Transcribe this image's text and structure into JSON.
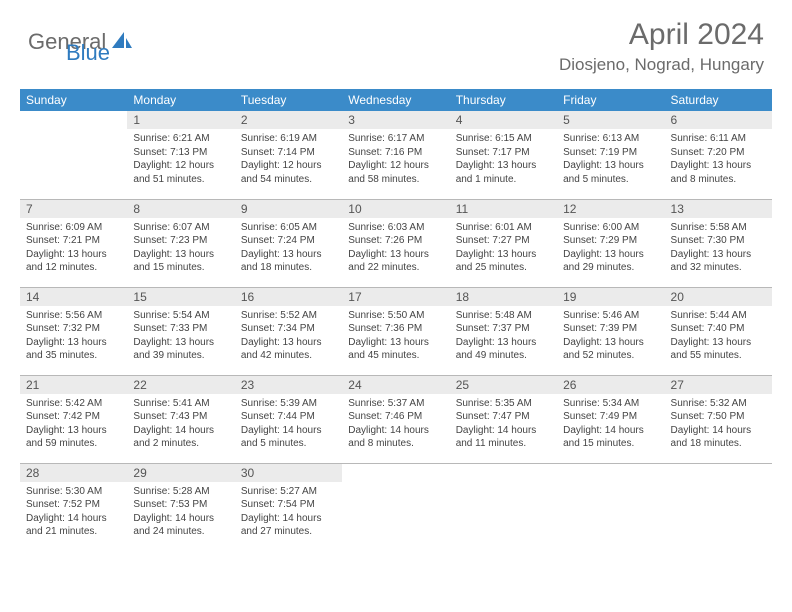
{
  "brand": {
    "part1": "General",
    "part2": "Blue"
  },
  "title": "April 2024",
  "location": "Diosjeno, Nograd, Hungary",
  "theme": {
    "header_bg": "#3b8bc9",
    "header_text": "#ffffff",
    "daynum_bg": "#ebebeb",
    "border": "#b8b8b8",
    "logo_gray": "#6b6b6b",
    "logo_blue": "#2f7bbf"
  },
  "weekdays": [
    "Sunday",
    "Monday",
    "Tuesday",
    "Wednesday",
    "Thursday",
    "Friday",
    "Saturday"
  ],
  "grid": [
    [
      null,
      {
        "n": "1",
        "sr": "Sunrise: 6:21 AM",
        "ss": "Sunset: 7:13 PM",
        "dl1": "Daylight: 12 hours",
        "dl2": "and 51 minutes."
      },
      {
        "n": "2",
        "sr": "Sunrise: 6:19 AM",
        "ss": "Sunset: 7:14 PM",
        "dl1": "Daylight: 12 hours",
        "dl2": "and 54 minutes."
      },
      {
        "n": "3",
        "sr": "Sunrise: 6:17 AM",
        "ss": "Sunset: 7:16 PM",
        "dl1": "Daylight: 12 hours",
        "dl2": "and 58 minutes."
      },
      {
        "n": "4",
        "sr": "Sunrise: 6:15 AM",
        "ss": "Sunset: 7:17 PM",
        "dl1": "Daylight: 13 hours",
        "dl2": "and 1 minute."
      },
      {
        "n": "5",
        "sr": "Sunrise: 6:13 AM",
        "ss": "Sunset: 7:19 PM",
        "dl1": "Daylight: 13 hours",
        "dl2": "and 5 minutes."
      },
      {
        "n": "6",
        "sr": "Sunrise: 6:11 AM",
        "ss": "Sunset: 7:20 PM",
        "dl1": "Daylight: 13 hours",
        "dl2": "and 8 minutes."
      }
    ],
    [
      {
        "n": "7",
        "sr": "Sunrise: 6:09 AM",
        "ss": "Sunset: 7:21 PM",
        "dl1": "Daylight: 13 hours",
        "dl2": "and 12 minutes."
      },
      {
        "n": "8",
        "sr": "Sunrise: 6:07 AM",
        "ss": "Sunset: 7:23 PM",
        "dl1": "Daylight: 13 hours",
        "dl2": "and 15 minutes."
      },
      {
        "n": "9",
        "sr": "Sunrise: 6:05 AM",
        "ss": "Sunset: 7:24 PM",
        "dl1": "Daylight: 13 hours",
        "dl2": "and 18 minutes."
      },
      {
        "n": "10",
        "sr": "Sunrise: 6:03 AM",
        "ss": "Sunset: 7:26 PM",
        "dl1": "Daylight: 13 hours",
        "dl2": "and 22 minutes."
      },
      {
        "n": "11",
        "sr": "Sunrise: 6:01 AM",
        "ss": "Sunset: 7:27 PM",
        "dl1": "Daylight: 13 hours",
        "dl2": "and 25 minutes."
      },
      {
        "n": "12",
        "sr": "Sunrise: 6:00 AM",
        "ss": "Sunset: 7:29 PM",
        "dl1": "Daylight: 13 hours",
        "dl2": "and 29 minutes."
      },
      {
        "n": "13",
        "sr": "Sunrise: 5:58 AM",
        "ss": "Sunset: 7:30 PM",
        "dl1": "Daylight: 13 hours",
        "dl2": "and 32 minutes."
      }
    ],
    [
      {
        "n": "14",
        "sr": "Sunrise: 5:56 AM",
        "ss": "Sunset: 7:32 PM",
        "dl1": "Daylight: 13 hours",
        "dl2": "and 35 minutes."
      },
      {
        "n": "15",
        "sr": "Sunrise: 5:54 AM",
        "ss": "Sunset: 7:33 PM",
        "dl1": "Daylight: 13 hours",
        "dl2": "and 39 minutes."
      },
      {
        "n": "16",
        "sr": "Sunrise: 5:52 AM",
        "ss": "Sunset: 7:34 PM",
        "dl1": "Daylight: 13 hours",
        "dl2": "and 42 minutes."
      },
      {
        "n": "17",
        "sr": "Sunrise: 5:50 AM",
        "ss": "Sunset: 7:36 PM",
        "dl1": "Daylight: 13 hours",
        "dl2": "and 45 minutes."
      },
      {
        "n": "18",
        "sr": "Sunrise: 5:48 AM",
        "ss": "Sunset: 7:37 PM",
        "dl1": "Daylight: 13 hours",
        "dl2": "and 49 minutes."
      },
      {
        "n": "19",
        "sr": "Sunrise: 5:46 AM",
        "ss": "Sunset: 7:39 PM",
        "dl1": "Daylight: 13 hours",
        "dl2": "and 52 minutes."
      },
      {
        "n": "20",
        "sr": "Sunrise: 5:44 AM",
        "ss": "Sunset: 7:40 PM",
        "dl1": "Daylight: 13 hours",
        "dl2": "and 55 minutes."
      }
    ],
    [
      {
        "n": "21",
        "sr": "Sunrise: 5:42 AM",
        "ss": "Sunset: 7:42 PM",
        "dl1": "Daylight: 13 hours",
        "dl2": "and 59 minutes."
      },
      {
        "n": "22",
        "sr": "Sunrise: 5:41 AM",
        "ss": "Sunset: 7:43 PM",
        "dl1": "Daylight: 14 hours",
        "dl2": "and 2 minutes."
      },
      {
        "n": "23",
        "sr": "Sunrise: 5:39 AM",
        "ss": "Sunset: 7:44 PM",
        "dl1": "Daylight: 14 hours",
        "dl2": "and 5 minutes."
      },
      {
        "n": "24",
        "sr": "Sunrise: 5:37 AM",
        "ss": "Sunset: 7:46 PM",
        "dl1": "Daylight: 14 hours",
        "dl2": "and 8 minutes."
      },
      {
        "n": "25",
        "sr": "Sunrise: 5:35 AM",
        "ss": "Sunset: 7:47 PM",
        "dl1": "Daylight: 14 hours",
        "dl2": "and 11 minutes."
      },
      {
        "n": "26",
        "sr": "Sunrise: 5:34 AM",
        "ss": "Sunset: 7:49 PM",
        "dl1": "Daylight: 14 hours",
        "dl2": "and 15 minutes."
      },
      {
        "n": "27",
        "sr": "Sunrise: 5:32 AM",
        "ss": "Sunset: 7:50 PM",
        "dl1": "Daylight: 14 hours",
        "dl2": "and 18 minutes."
      }
    ],
    [
      {
        "n": "28",
        "sr": "Sunrise: 5:30 AM",
        "ss": "Sunset: 7:52 PM",
        "dl1": "Daylight: 14 hours",
        "dl2": "and 21 minutes."
      },
      {
        "n": "29",
        "sr": "Sunrise: 5:28 AM",
        "ss": "Sunset: 7:53 PM",
        "dl1": "Daylight: 14 hours",
        "dl2": "and 24 minutes."
      },
      {
        "n": "30",
        "sr": "Sunrise: 5:27 AM",
        "ss": "Sunset: 7:54 PM",
        "dl1": "Daylight: 14 hours",
        "dl2": "and 27 minutes."
      },
      null,
      null,
      null,
      null
    ]
  ]
}
